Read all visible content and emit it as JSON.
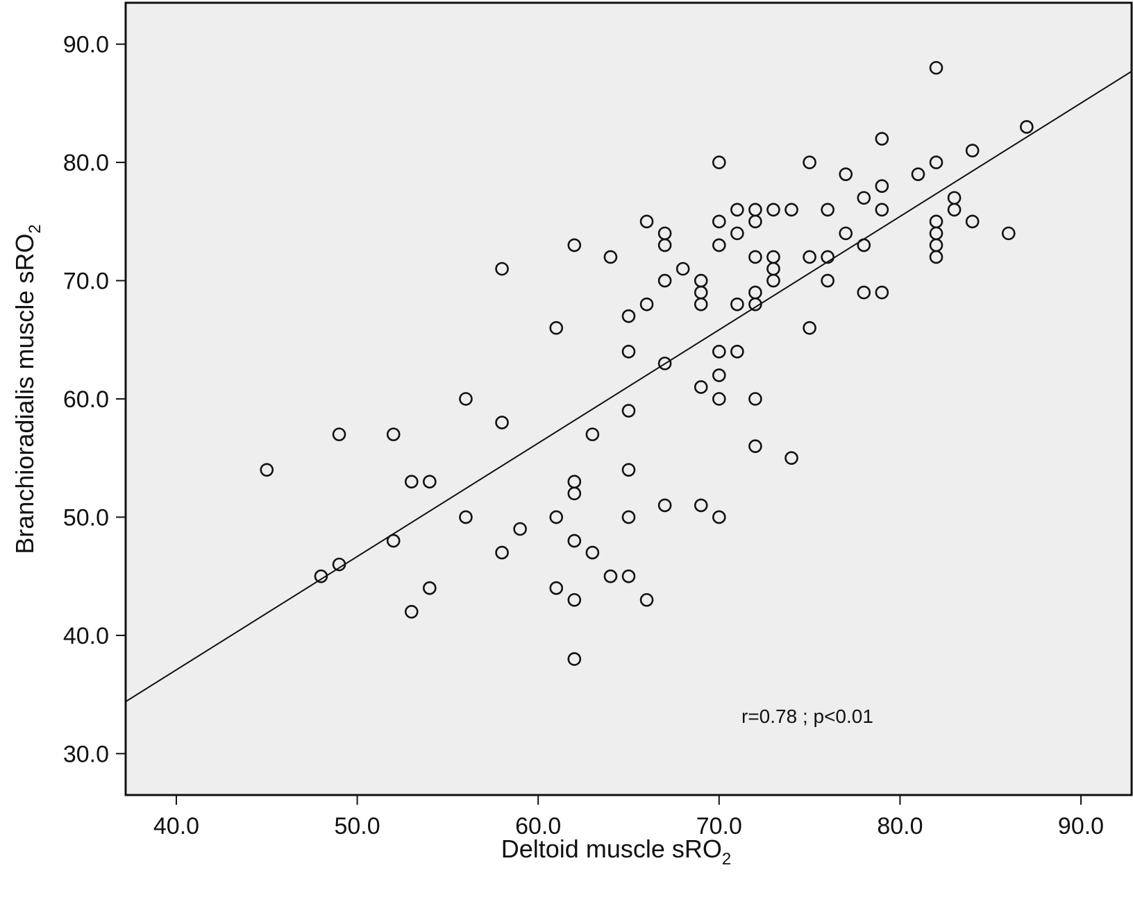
{
  "chart_data": {
    "type": "scatter",
    "title": "",
    "xlabel": {
      "main": "Deltoid muscle sRO",
      "sub": "2"
    },
    "ylabel": {
      "main": "Branchioradialis muscle sRO",
      "sub": "2"
    },
    "xlim": [
      37.2,
      92.8
    ],
    "ylim": [
      26.5,
      93.5
    ],
    "xticks": [
      40,
      50,
      60,
      70,
      80,
      90
    ],
    "yticks": [
      30,
      40,
      50,
      60,
      70,
      80,
      90
    ],
    "xtick_labels": [
      "40.0",
      "50.0",
      "60.0",
      "70.0",
      "80.0",
      "90.0"
    ],
    "ytick_labels": [
      "30.0",
      "40.0",
      "50.0",
      "60.0",
      "70.0",
      "80.0",
      "90.0"
    ],
    "grid": false,
    "background": "#eeeeee",
    "marker": "open-circle",
    "points": [
      [
        45,
        54
      ],
      [
        48,
        45
      ],
      [
        49,
        46
      ],
      [
        49,
        57
      ],
      [
        52,
        57
      ],
      [
        52,
        48
      ],
      [
        53,
        53
      ],
      [
        53,
        42
      ],
      [
        54,
        53
      ],
      [
        54,
        44
      ],
      [
        56,
        60
      ],
      [
        56,
        50
      ],
      [
        58,
        71
      ],
      [
        58,
        58
      ],
      [
        58,
        47
      ],
      [
        59,
        49
      ],
      [
        61,
        66
      ],
      [
        61,
        50
      ],
      [
        61,
        44
      ],
      [
        62,
        73
      ],
      [
        62,
        53
      ],
      [
        62,
        52
      ],
      [
        62,
        48
      ],
      [
        62,
        43
      ],
      [
        62,
        38
      ],
      [
        63,
        57
      ],
      [
        63,
        47
      ],
      [
        64,
        72
      ],
      [
        64,
        45
      ],
      [
        65,
        67
      ],
      [
        65,
        64
      ],
      [
        65,
        59
      ],
      [
        65,
        54
      ],
      [
        65,
        50
      ],
      [
        65,
        45
      ],
      [
        66,
        75
      ],
      [
        66,
        68
      ],
      [
        66,
        43
      ],
      [
        67,
        74
      ],
      [
        67,
        73
      ],
      [
        67,
        70
      ],
      [
        67,
        63
      ],
      [
        67,
        51
      ],
      [
        68,
        71
      ],
      [
        69,
        70
      ],
      [
        69,
        69
      ],
      [
        69,
        68
      ],
      [
        69,
        61
      ],
      [
        69,
        51
      ],
      [
        70,
        80
      ],
      [
        70,
        75
      ],
      [
        70,
        73
      ],
      [
        70,
        64
      ],
      [
        70,
        62
      ],
      [
        70,
        60
      ],
      [
        70,
        50
      ],
      [
        71,
        76
      ],
      [
        71,
        74
      ],
      [
        71,
        68
      ],
      [
        71,
        64
      ],
      [
        72,
        76
      ],
      [
        72,
        75
      ],
      [
        72,
        72
      ],
      [
        72,
        69
      ],
      [
        72,
        68
      ],
      [
        72,
        60
      ],
      [
        72,
        56
      ],
      [
        73,
        76
      ],
      [
        73,
        72
      ],
      [
        73,
        71
      ],
      [
        73,
        70
      ],
      [
        74,
        76
      ],
      [
        74,
        55
      ],
      [
        75,
        80
      ],
      [
        75,
        72
      ],
      [
        75,
        66
      ],
      [
        76,
        76
      ],
      [
        76,
        72
      ],
      [
        76,
        70
      ],
      [
        77,
        79
      ],
      [
        77,
        74
      ],
      [
        78,
        77
      ],
      [
        78,
        73
      ],
      [
        78,
        69
      ],
      [
        79,
        82
      ],
      [
        79,
        78
      ],
      [
        79,
        76
      ],
      [
        79,
        69
      ],
      [
        81,
        79
      ],
      [
        82,
        88
      ],
      [
        82,
        80
      ],
      [
        82,
        75
      ],
      [
        82,
        74
      ],
      [
        82,
        73
      ],
      [
        82,
        72
      ],
      [
        83,
        77
      ],
      [
        83,
        76
      ],
      [
        84,
        81
      ],
      [
        84,
        75
      ],
      [
        86,
        74
      ],
      [
        87,
        83
      ]
    ],
    "fit_line": {
      "x": [
        37.2,
        92.8
      ],
      "y": [
        34.4,
        87.7
      ]
    },
    "annotation": "r=0.78 ; p<0.01"
  }
}
